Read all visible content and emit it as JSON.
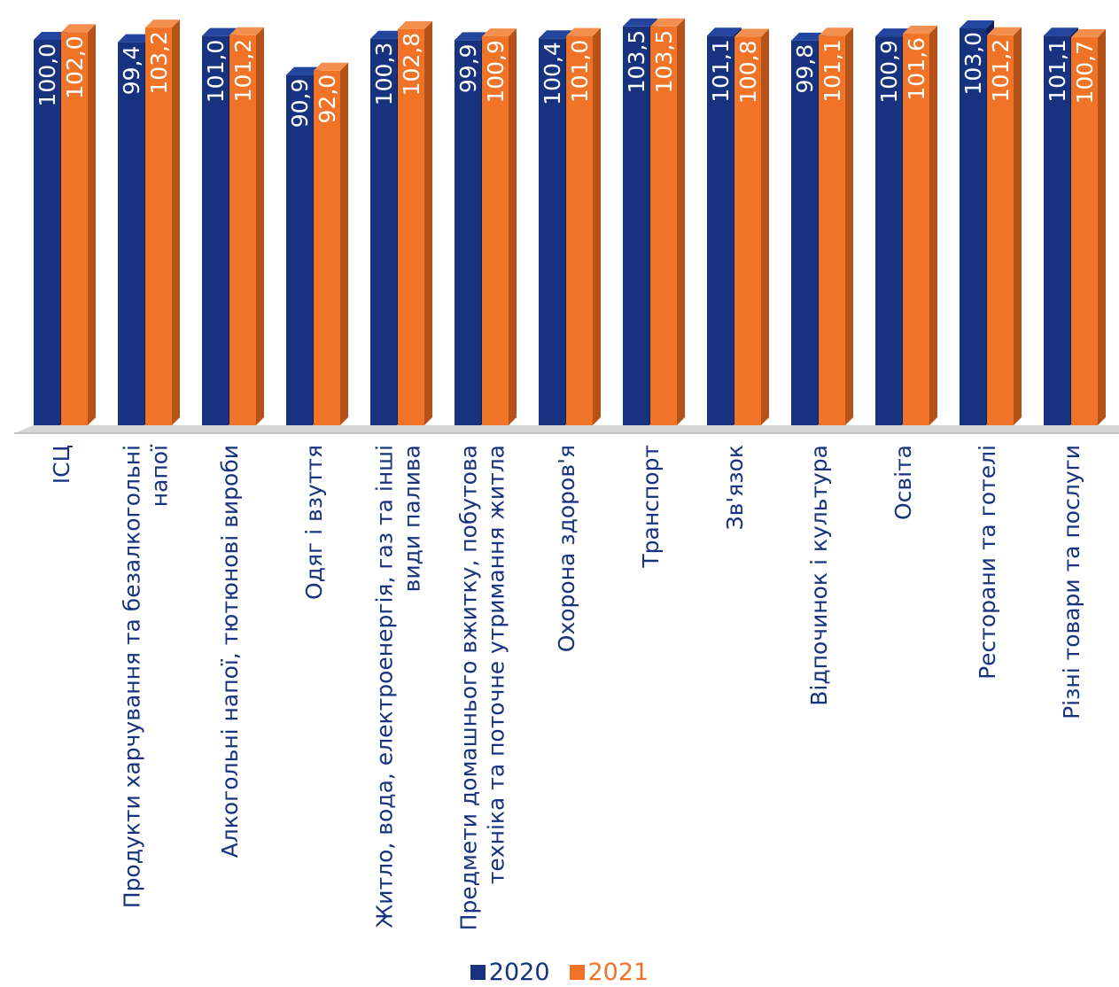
{
  "chart_data": {
    "type": "bar",
    "title": "",
    "xlabel": "",
    "ylabel": "",
    "ylim": [
      0,
      105
    ],
    "categories": [
      "ІСЦ",
      "Продукти харчування та безалкогольні напої",
      "Алкогольні напої, тютюнові вироби",
      "Одяг і взуття",
      "Житло, вода, електроенергія, газ та інші види палива",
      "Предмети домашнього вжитку, побутова техніка та поточне утримання житла",
      "Охорона здоров'я",
      "Транспорт",
      "Зв'язок",
      "Відпочинок і культура",
      "Освіта",
      "Ресторани та готелі",
      "Різні товари та послуги"
    ],
    "category_lines": [
      [
        "ІСЦ"
      ],
      [
        "Продукти харчування та безалкогольні",
        "напої"
      ],
      [
        "Алкогольні напої, тютюнові вироби"
      ],
      [
        "Одяг і взуття"
      ],
      [
        "Житло, вода, електроенергія, газ та інші",
        "види палива"
      ],
      [
        "Предмети домашнього вжитку, побутова",
        "техніка та поточне утримання житла"
      ],
      [
        "Охорона здоров'я"
      ],
      [
        "Транспорт"
      ],
      [
        "Зв'язок"
      ],
      [
        "Відпочинок і культура"
      ],
      [
        "Освіта"
      ],
      [
        "Ресторани та готелі"
      ],
      [
        "Різні товари та послуги"
      ]
    ],
    "series": [
      {
        "name": "2020",
        "color": "#17327f",
        "values": [
          100.0,
          99.4,
          101.0,
          90.9,
          100.3,
          99.9,
          100.4,
          103.5,
          101.1,
          99.8,
          100.9,
          103.0,
          101.1
        ],
        "labels": [
          "100,0",
          "99,4",
          "101,0",
          "90,9",
          "100,3",
          "99,9",
          "100,4",
          "103,5",
          "101,1",
          "99,8",
          "100,9",
          "103,0",
          "101,1"
        ]
      },
      {
        "name": "2021",
        "color": "#f07327",
        "values": [
          102.0,
          103.2,
          101.2,
          92.0,
          102.8,
          100.9,
          101.0,
          103.5,
          100.8,
          101.1,
          101.6,
          101.2,
          100.7
        ],
        "labels": [
          "102,0",
          "103,2",
          "101,2",
          "92,0",
          "102,8",
          "100,9",
          "101,0",
          "103,5",
          "100,8",
          "101,1",
          "101,6",
          "101,2",
          "100,7"
        ]
      }
    ],
    "legend_position": "bottom",
    "grid": false
  },
  "legend": {
    "series_2020": "2020",
    "series_2021": "2021"
  },
  "colors": {
    "series_2020": "#17327f",
    "series_2021": "#f07327",
    "category_text": "#17327f",
    "value_text": "#ffffff"
  }
}
